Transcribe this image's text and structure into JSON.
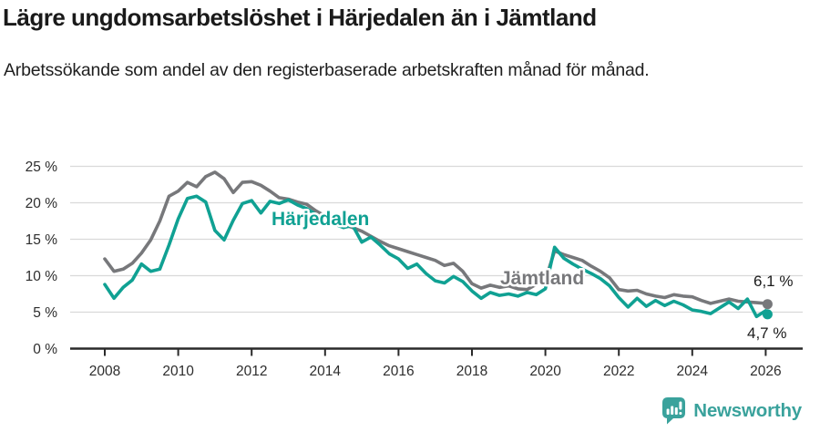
{
  "header": {
    "title": "Lägre ungdomsarbetslöshet i Härjedalen än i Jämtland",
    "subtitle": "Arbetssökande som andel av den registerbaserade arbetskraften månad för månad."
  },
  "chart_data": {
    "type": "line",
    "title": "Lägre ungdomsarbetslöshet i Härjedalen än i Jämtland",
    "xlabel": "",
    "ylabel": "",
    "x_start": 2008,
    "x_step": 0.25,
    "x_end": 2026.05,
    "x_axis": {
      "ticks": [
        2008,
        2010,
        2012,
        2014,
        2016,
        2018,
        2020,
        2022,
        2024,
        2026
      ],
      "labels": [
        "2008",
        "2010",
        "2012",
        "2014",
        "2016",
        "2018",
        "2020",
        "2022",
        "2024",
        "2026"
      ]
    },
    "y_axis": {
      "ticks": [
        0,
        5,
        10,
        15,
        20,
        25
      ],
      "labels": [
        "0 %",
        "5 %",
        "10 %",
        "15 %",
        "20 %",
        "25 %"
      ],
      "range": [
        0,
        25
      ]
    },
    "grid": "horizontal",
    "colors": {
      "grid": "#d9d9d9",
      "axis": "#2a2a2a",
      "text": "#1a1a1a"
    },
    "series": [
      {
        "name": "Jämtland",
        "color": "#77787b",
        "end_label": "6,1 %",
        "end_value": 6.1,
        "values": [
          12.3,
          10.6,
          10.9,
          11.7,
          13.1,
          14.9,
          17.5,
          20.9,
          21.6,
          22.8,
          22.2,
          23.6,
          24.2,
          23.3,
          21.4,
          22.8,
          22.9,
          22.4,
          21.6,
          20.7,
          20.5,
          20.1,
          19.8,
          18.9,
          18.2,
          17.5,
          17.0,
          16.6,
          16.1,
          15.4,
          14.7,
          14.1,
          13.7,
          13.3,
          12.9,
          12.5,
          12.1,
          11.4,
          11.7,
          10.6,
          8.9,
          8.3,
          8.7,
          8.4,
          8.6,
          8.2,
          8.1,
          8.8,
          9.4,
          13.4,
          12.9,
          12.5,
          12.1,
          11.3,
          10.6,
          9.7,
          8.1,
          7.9,
          8.0,
          7.5,
          7.2,
          7.0,
          7.4,
          7.2,
          7.1,
          6.6,
          6.2,
          6.5,
          6.8,
          6.5,
          6.4,
          6.3,
          6.2,
          6.1
        ]
      },
      {
        "name": "Härjedalen",
        "color": "#10a193",
        "end_label": "4,7 %",
        "end_value": 4.7,
        "values": [
          8.8,
          6.9,
          8.4,
          9.4,
          11.6,
          10.6,
          10.9,
          14.2,
          17.8,
          20.6,
          20.9,
          20.1,
          16.2,
          14.9,
          17.6,
          19.9,
          20.3,
          18.6,
          20.2,
          19.9,
          20.4,
          19.7,
          19.2,
          18.4,
          17.8,
          17.1,
          16.6,
          16.9,
          14.6,
          15.3,
          14.2,
          13.0,
          12.3,
          11.0,
          11.6,
          10.3,
          9.3,
          9.0,
          9.9,
          9.2,
          7.9,
          6.9,
          7.7,
          7.3,
          7.5,
          7.2,
          7.7,
          7.4,
          8.2,
          13.9,
          12.4,
          11.6,
          10.9,
          10.3,
          9.6,
          8.6,
          7.0,
          5.7,
          6.9,
          5.8,
          6.6,
          5.9,
          6.5,
          6.0,
          5.3,
          5.1,
          4.8,
          5.6,
          6.4,
          5.5,
          6.8,
          4.4,
          5.2,
          4.7
        ]
      }
    ],
    "legend_position": "inline-labels"
  },
  "footer": {
    "brand": "Newsworthy",
    "brand_color": "#3aa29c"
  }
}
